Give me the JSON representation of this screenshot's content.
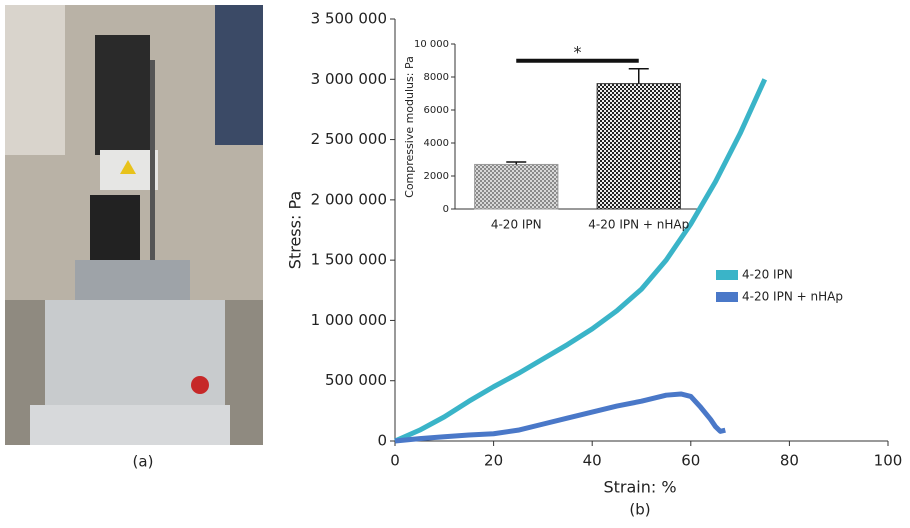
{
  "captions": [
    "(a)",
    "(b)"
  ],
  "chart_data": [
    {
      "type": "line",
      "xlabel": "Strain: %",
      "ylabel": "Stress: Pa",
      "xlim": [
        0,
        100
      ],
      "xticks": [
        0,
        20,
        40,
        60,
        80,
        100
      ],
      "ylim": [
        0,
        3500000
      ],
      "yticks": [
        0,
        {
          "value": 500000,
          "label": "500 000"
        },
        {
          "value": 1000000,
          "label": "1 000 000"
        },
        {
          "value": 1500000,
          "label": "1 500 000"
        },
        {
          "value": 2000000,
          "label": "2 000 000"
        },
        {
          "value": 2500000,
          "label": "2 500 000"
        },
        {
          "value": 3000000,
          "label": "3 000 000"
        },
        {
          "value": 3500000,
          "label": "3 500 000"
        }
      ],
      "legend": "center right",
      "series": [
        {
          "name": "4-20 IPN",
          "color": "#3ab4c8",
          "x": [
            0,
            5,
            10,
            15,
            20,
            25,
            30,
            35,
            40,
            45,
            50,
            55,
            60,
            65,
            70,
            75
          ],
          "values": [
            0,
            90000,
            200000,
            330000,
            450000,
            560000,
            680000,
            800000,
            930000,
            1080000,
            1260000,
            1500000,
            1800000,
            2150000,
            2550000,
            3000000
          ]
        },
        {
          "name": "4-20 IPN + nHAp",
          "color": "#4a78c8",
          "x": [
            0,
            5,
            10,
            15,
            20,
            25,
            30,
            35,
            40,
            45,
            50,
            55,
            58,
            60,
            62,
            64,
            65,
            66,
            67
          ],
          "values": [
            0,
            20000,
            35000,
            50000,
            60000,
            90000,
            140000,
            190000,
            240000,
            290000,
            330000,
            380000,
            390000,
            370000,
            280000,
            180000,
            120000,
            80000,
            90000
          ]
        }
      ]
    },
    {
      "type": "bar",
      "ylabel": "Compressive modulus: Pa",
      "categories": [
        "4-20 IPN",
        "4-20 IPN + nHAp"
      ],
      "values": [
        2700,
        7600
      ],
      "errors": [
        150,
        900
      ],
      "colors": [
        "#9a9a9a",
        "#3a3a3a"
      ],
      "ylim": [
        0,
        10000
      ],
      "yticks": [
        0,
        2000,
        4000,
        6000,
        8000,
        {
          "value": 10000,
          "label": "10 000"
        }
      ],
      "significance": "*"
    }
  ]
}
